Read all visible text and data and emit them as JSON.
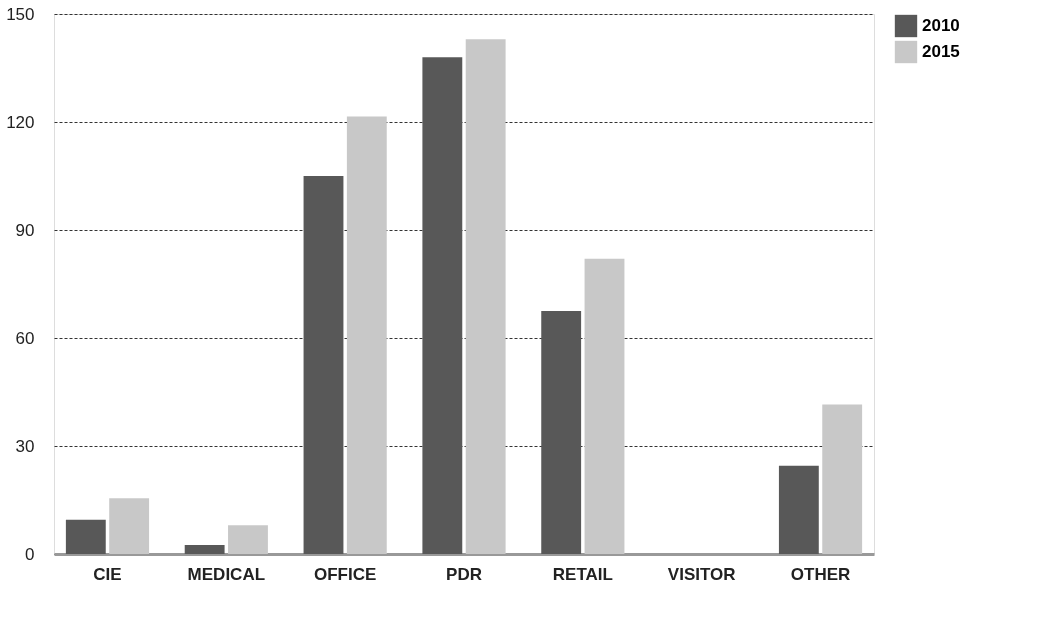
{
  "chart_data": {
    "type": "bar",
    "categories": [
      "CIE",
      "MEDICAL",
      "OFFICE",
      "PDR",
      "RETAIL",
      "VISITOR",
      "OTHER"
    ],
    "series": [
      {
        "name": "2010",
        "color": "#585858",
        "values": [
          9.5,
          2.5,
          105,
          138,
          67.5,
          0,
          24.5
        ]
      },
      {
        "name": "2015",
        "color": "#c8c8c8",
        "values": [
          15.5,
          8,
          121.5,
          143,
          82,
          0,
          41.5
        ]
      }
    ],
    "ylim": [
      0,
      150
    ],
    "yticks": [
      0,
      30,
      60,
      90,
      120,
      150
    ],
    "grid": "y",
    "legend": "top right"
  }
}
